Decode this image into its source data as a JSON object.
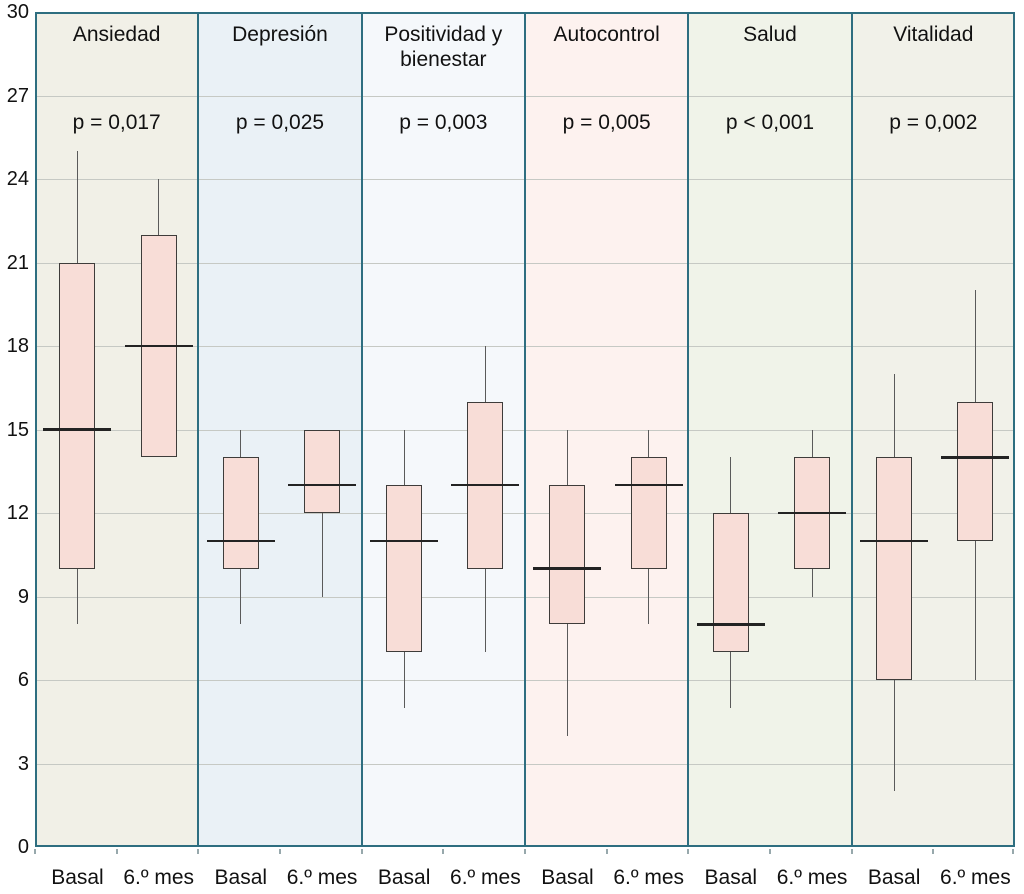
{
  "colors": {
    "frame": "#2e6e80",
    "gridline": "#c6c9c4",
    "box_fill": "#f8ddd7",
    "box_border": "#3e3c3a",
    "median": "#232323",
    "whisker": "#5a5a5a",
    "axis_tick": "#97a8ac",
    "text": "#111111",
    "background": "#ffffff"
  },
  "chart_data": {
    "type": "boxplot",
    "title": "",
    "xlabel": "",
    "ylabel": "",
    "grid": true,
    "legend": false,
    "y_axis": {
      "min": 0,
      "max": 30,
      "tick_step": 3,
      "tick_labels": [
        "0",
        "3",
        "6",
        "9",
        "12",
        "15",
        "18",
        "21",
        "24",
        "27",
        "30"
      ]
    },
    "group_labels": [
      "Basal",
      "6.º mes"
    ],
    "panels": [
      {
        "title": "Ansiedad",
        "p_value_label": "p = 0,017",
        "bg_color": "#f1f0e7",
        "boxes": [
          {
            "label": "Basal",
            "whisker_low": 8,
            "q1": 10,
            "median": 15,
            "q3": 21,
            "whisker_high": 25
          },
          {
            "label": "6.º mes",
            "whisker_low": 14,
            "q1": 14,
            "median": 18,
            "q3": 22,
            "whisker_high": 24
          }
        ]
      },
      {
        "title": "Depresión",
        "p_value_label": "p = 0,025",
        "bg_color": "#eaf1f6",
        "boxes": [
          {
            "label": "Basal",
            "whisker_low": 8,
            "q1": 10,
            "median": 11,
            "q3": 14,
            "whisker_high": 15
          },
          {
            "label": "6.º mes",
            "whisker_low": 9,
            "q1": 12,
            "median": 13,
            "q3": 15,
            "whisker_high": 15
          }
        ]
      },
      {
        "title": "Positividad y bienestar",
        "p_value_label": "p = 0,003",
        "bg_color": "#f5f8fb",
        "boxes": [
          {
            "label": "Basal",
            "whisker_low": 5,
            "q1": 7,
            "median": 11,
            "q3": 13,
            "whisker_high": 15
          },
          {
            "label": "6.º mes",
            "whisker_low": 7,
            "q1": 10,
            "median": 13,
            "q3": 16,
            "whisker_high": 18
          }
        ]
      },
      {
        "title": "Autocontrol",
        "p_value_label": "p = 0,005",
        "bg_color": "#fdf2ef",
        "boxes": [
          {
            "label": "Basal",
            "whisker_low": 4,
            "q1": 8,
            "median": 10,
            "q3": 13,
            "whisker_high": 15
          },
          {
            "label": "6.º mes",
            "whisker_low": 8,
            "q1": 10,
            "median": 13,
            "q3": 14,
            "whisker_high": 15
          }
        ]
      },
      {
        "title": "Salud",
        "p_value_label": "p < 0,001",
        "bg_color": "#f0f3e9",
        "boxes": [
          {
            "label": "Basal",
            "whisker_low": 5,
            "q1": 7,
            "median": 8,
            "q3": 12,
            "whisker_high": 14
          },
          {
            "label": "6.º mes",
            "whisker_low": 9,
            "q1": 10,
            "median": 12,
            "q3": 14,
            "whisker_high": 15
          }
        ]
      },
      {
        "title": "Vitalidad",
        "p_value_label": "p = 0,002",
        "bg_color": "#f1f1e9",
        "boxes": [
          {
            "label": "Basal",
            "whisker_low": 2,
            "q1": 6,
            "median": 11,
            "q3": 14,
            "whisker_high": 17
          },
          {
            "label": "6.º mes",
            "whisker_low": 6,
            "q1": 11,
            "median": 14,
            "q3": 16,
            "whisker_high": 20
          }
        ]
      }
    ]
  }
}
